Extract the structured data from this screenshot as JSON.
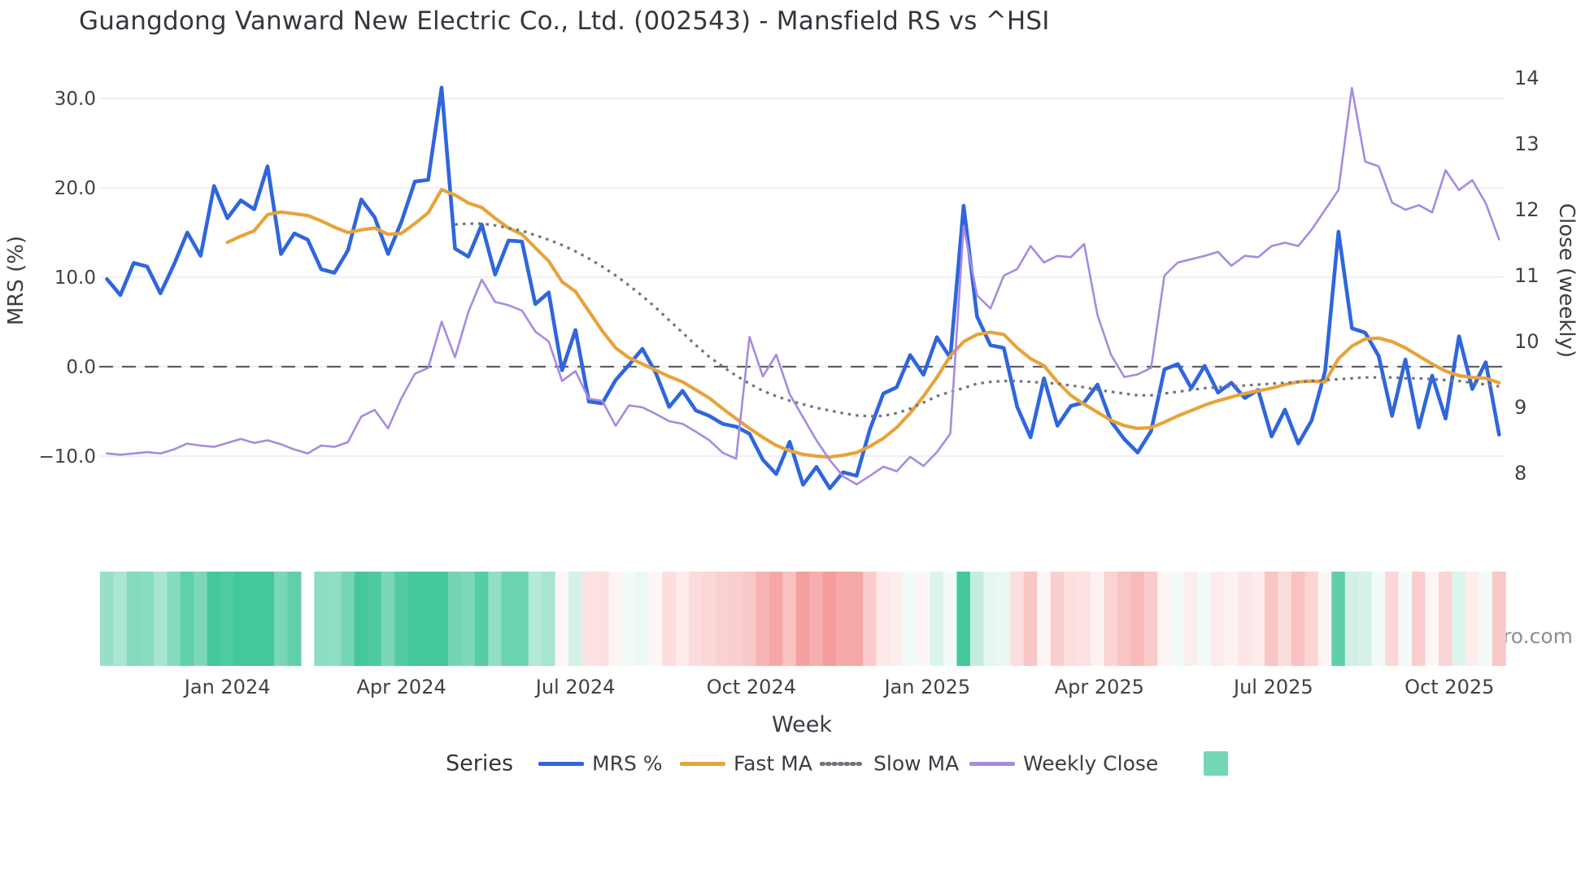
{
  "title": "Guangdong Vanward New Electric Co., Ltd. (002543) - Mansfield RS vs ^HSI",
  "source": "source: sharemaestro.com",
  "axes": {
    "left": {
      "label": "MRS (%)",
      "ticks": [
        {
          "label": "30.0",
          "value": 30
        },
        {
          "label": "20.0",
          "value": 20
        },
        {
          "label": "10.0",
          "value": 10
        },
        {
          "label": "0.0",
          "value": 0
        },
        {
          "label": "−10.0",
          "value": -10
        }
      ]
    },
    "right": {
      "label": "Close (weekly)",
      "ticks": [
        {
          "label": "14",
          "value": 14
        },
        {
          "label": "13",
          "value": 13
        },
        {
          "label": "12",
          "value": 12
        },
        {
          "label": "11",
          "value": 11
        },
        {
          "label": "10",
          "value": 10
        },
        {
          "label": "9",
          "value": 9
        },
        {
          "label": "8",
          "value": 8
        }
      ]
    },
    "x": {
      "label": "Week",
      "ticks": [
        {
          "label": "Jan 2024",
          "index": 9.0
        },
        {
          "label": "Apr 2024",
          "index": 22.0
        },
        {
          "label": "Jul 2024",
          "index": 35.0
        },
        {
          "label": "Oct 2024",
          "index": 48.14
        },
        {
          "label": "Jan 2025",
          "index": 61.29
        },
        {
          "label": "Apr 2025",
          "index": 74.14
        },
        {
          "label": "Jul 2025",
          "index": 87.14
        },
        {
          "label": "Oct 2025",
          "index": 100.29
        }
      ]
    }
  },
  "legend": {
    "title": "Series",
    "items": [
      {
        "label": "MRS %",
        "swatch": "line",
        "color": "#2f66dc"
      },
      {
        "label": "Fast MA",
        "swatch": "line",
        "color": "#e7a33a"
      },
      {
        "label": "Slow MA",
        "swatch": "dotted",
        "color": "#70757d"
      },
      {
        "label": "Weekly Close",
        "swatch": "line",
        "color": "#a78ae1"
      },
      {
        "label": "",
        "swatch": "square",
        "color": "rgba(43,192,141,0.65)"
      }
    ]
  },
  "chart_data": {
    "type": "line",
    "title": "Guangdong Vanward New Electric Co., Ltd. (002543) - Mansfield RS vs ^HSI",
    "xlabel": "Week",
    "ylabel_left": "MRS (%)",
    "ylabel_right": "Close (weekly)",
    "ylim_left": [
      -17.0,
      34.5
    ],
    "ylim_right": [
      7.3,
      14.3
    ],
    "grid": "horizontal-left-ticks",
    "zero_line_left": 0,
    "x": [
      "2023-10-30",
      "2023-11-06",
      "2023-11-13",
      "2023-11-20",
      "2023-11-27",
      "2023-12-04",
      "2023-12-11",
      "2023-12-18",
      "2023-12-25",
      "2024-01-01",
      "2024-01-08",
      "2024-01-15",
      "2024-01-22",
      "2024-01-29",
      "2024-02-05",
      "2024-02-12",
      "2024-02-19",
      "2024-02-26",
      "2024-03-04",
      "2024-03-11",
      "2024-03-18",
      "2024-03-25",
      "2024-04-01",
      "2024-04-08",
      "2024-04-15",
      "2024-04-22",
      "2024-04-29",
      "2024-05-06",
      "2024-05-13",
      "2024-05-20",
      "2024-05-27",
      "2024-06-03",
      "2024-06-10",
      "2024-06-17",
      "2024-06-24",
      "2024-07-01",
      "2024-07-08",
      "2024-07-15",
      "2024-07-22",
      "2024-07-29",
      "2024-08-05",
      "2024-08-12",
      "2024-08-19",
      "2024-08-26",
      "2024-09-02",
      "2024-09-09",
      "2024-09-16",
      "2024-09-23",
      "2024-09-30",
      "2024-10-07",
      "2024-10-14",
      "2024-10-21",
      "2024-10-28",
      "2024-11-04",
      "2024-11-11",
      "2024-11-18",
      "2024-11-25",
      "2024-12-02",
      "2024-12-09",
      "2024-12-16",
      "2024-12-23",
      "2024-12-30",
      "2025-01-06",
      "2025-01-13",
      "2025-01-20",
      "2025-01-27",
      "2025-02-03",
      "2025-02-10",
      "2025-02-17",
      "2025-02-24",
      "2025-03-03",
      "2025-03-10",
      "2025-03-17",
      "2025-03-24",
      "2025-03-31",
      "2025-04-07",
      "2025-04-14",
      "2025-04-21",
      "2025-04-28",
      "2025-05-05",
      "2025-05-12",
      "2025-05-19",
      "2025-05-26",
      "2025-06-02",
      "2025-06-09",
      "2025-06-16",
      "2025-06-23",
      "2025-06-30",
      "2025-07-07",
      "2025-07-14",
      "2025-07-21",
      "2025-07-28",
      "2025-08-04",
      "2025-08-11",
      "2025-08-18",
      "2025-08-25",
      "2025-09-01",
      "2025-09-08",
      "2025-09-15",
      "2025-09-22",
      "2025-09-29",
      "2025-10-06",
      "2025-10-13",
      "2025-10-20",
      "2025-10-27"
    ],
    "series": [
      {
        "name": "MRS %",
        "axis": "left",
        "color": "#2f66dc",
        "width": 4.6,
        "style": "solid",
        "start_index": 0,
        "values": [
          9.8,
          8.0,
          11.6,
          11.2,
          8.2,
          11.4,
          15.0,
          12.4,
          20.2,
          16.6,
          18.6,
          17.6,
          22.4,
          12.6,
          14.9,
          14.2,
          10.9,
          10.5,
          13.0,
          18.7,
          16.7,
          12.6,
          16.2,
          20.7,
          20.9,
          31.2,
          13.2,
          12.3,
          15.9,
          10.3,
          14.1,
          14.0,
          7.0,
          8.3,
          -0.4,
          4.1,
          -3.9,
          -4.1,
          -1.5,
          0.2,
          2.0,
          -0.7,
          -4.5,
          -2.7,
          -4.9,
          -5.5,
          -6.4,
          -6.7,
          -7.5,
          -10.4,
          -12.0,
          -8.4,
          -13.2,
          -11.2,
          -13.6,
          -11.8,
          -12.2,
          -7.0,
          -3.0,
          -2.3,
          1.3,
          -0.9,
          3.3,
          1.0,
          18.0,
          5.6,
          2.4,
          2.1,
          -4.5,
          -7.9,
          -1.3,
          -6.6,
          -4.4,
          -4.0,
          -2.0,
          -6.1,
          -8.1,
          -9.6,
          -7.2,
          -0.3,
          0.3,
          -2.4,
          0.1,
          -2.9,
          -1.8,
          -3.5,
          -2.6,
          -7.8,
          -4.8,
          -8.6,
          -6.0,
          -0.5,
          15.1,
          4.3,
          3.8,
          1.2,
          -5.5,
          0.8,
          -6.8,
          -1.0,
          -5.8,
          3.4,
          -2.5,
          0.5,
          -7.6
        ]
      },
      {
        "name": "Fast MA",
        "axis": "left",
        "color": "#e7a33a",
        "width": 4.2,
        "style": "solid",
        "start_index": 9,
        "values": [
          13.9,
          14.6,
          15.2,
          17.0,
          17.3,
          17.1,
          16.9,
          16.3,
          15.6,
          15.0,
          15.3,
          15.5,
          14.8,
          14.9,
          16.0,
          17.2,
          19.8,
          19.2,
          18.3,
          17.8,
          16.6,
          15.5,
          14.8,
          13.3,
          11.8,
          9.5,
          8.4,
          6.2,
          4.0,
          2.1,
          1.0,
          0.3,
          -0.4,
          -1.1,
          -1.7,
          -2.6,
          -3.5,
          -4.7,
          -5.8,
          -6.9,
          -7.9,
          -8.8,
          -9.4,
          -9.8,
          -10.0,
          -10.1,
          -9.9,
          -9.6,
          -8.9,
          -8.0,
          -6.8,
          -5.2,
          -3.3,
          -1.2,
          1.2,
          2.8,
          3.6,
          3.85,
          3.6,
          2.1,
          0.9,
          0.1,
          -1.7,
          -3.2,
          -4.2,
          -5.1,
          -6.0,
          -6.6,
          -6.9,
          -6.8,
          -6.2,
          -5.5,
          -4.9,
          -4.3,
          -3.8,
          -3.4,
          -3.0,
          -2.7,
          -2.4,
          -2.0,
          -1.7,
          -1.6,
          -1.7,
          0.9,
          2.3,
          3.1,
          3.2,
          2.8,
          2.1,
          1.2,
          0.3,
          -0.5,
          -1.0,
          -1.2,
          -1.3,
          -1.8
        ]
      },
      {
        "name": "Slow MA",
        "axis": "left",
        "color": "#70757d",
        "width": 3.2,
        "style": "dotted",
        "start_index": 26,
        "values": [
          15.9,
          16.0,
          16.0,
          15.8,
          15.5,
          15.2,
          14.7,
          14.2,
          13.6,
          12.9,
          12.1,
          11.2,
          10.2,
          9.1,
          7.9,
          6.6,
          5.2,
          3.8,
          2.4,
          1.1,
          0.0,
          -1.0,
          -1.9,
          -2.7,
          -3.3,
          -3.8,
          -4.2,
          -4.6,
          -4.9,
          -5.2,
          -5.45,
          -5.55,
          -5.5,
          -5.2,
          -4.7,
          -4.0,
          -3.3,
          -2.8,
          -2.4,
          -1.9,
          -1.7,
          -1.6,
          -1.6,
          -1.7,
          -1.8,
          -1.9,
          -2.1,
          -2.3,
          -2.6,
          -2.8,
          -3.0,
          -3.2,
          -3.2,
          -3.0,
          -2.8,
          -2.6,
          -2.4,
          -2.3,
          -2.2,
          -2.1,
          -2.0,
          -1.9,
          -1.8,
          -1.7,
          -1.6,
          -1.5,
          -1.4,
          -1.3,
          -1.2,
          -1.2,
          -1.2,
          -1.3,
          -1.3,
          -1.4,
          -1.5,
          -1.6,
          -1.8,
          -2.0,
          -2.2
        ]
      },
      {
        "name": "Weekly Close",
        "axis": "right",
        "color": "#a78ae1",
        "width": 2.6,
        "style": "solid",
        "start_index": 0,
        "values": [
          8.3,
          8.28,
          8.3,
          8.32,
          8.3,
          8.36,
          8.45,
          8.42,
          8.4,
          8.46,
          8.52,
          8.46,
          8.5,
          8.44,
          8.36,
          8.3,
          8.42,
          8.4,
          8.47,
          8.86,
          8.96,
          8.68,
          9.14,
          9.51,
          9.6,
          10.3,
          9.76,
          10.45,
          10.94,
          10.6,
          10.55,
          10.47,
          10.15,
          10.0,
          9.4,
          9.55,
          9.13,
          9.1,
          8.72,
          9.03,
          9.0,
          8.9,
          8.79,
          8.75,
          8.63,
          8.5,
          8.31,
          8.22,
          10.07,
          9.47,
          9.8,
          9.2,
          8.85,
          8.5,
          8.2,
          7.95,
          7.83,
          7.96,
          8.1,
          8.03,
          8.25,
          8.11,
          8.32,
          8.6,
          11.75,
          10.7,
          10.5,
          11.0,
          11.1,
          11.45,
          11.2,
          11.3,
          11.28,
          11.48,
          10.4,
          9.8,
          9.46,
          9.5,
          9.6,
          11.0,
          11.2,
          11.25,
          11.3,
          11.36,
          11.15,
          11.3,
          11.28,
          11.45,
          11.5,
          11.45,
          11.7,
          12.0,
          12.3,
          13.85,
          12.73,
          12.66,
          12.11,
          12.0,
          12.07,
          11.96,
          12.6,
          12.3,
          12.45,
          12.1,
          11.55
        ]
      }
    ],
    "heatmap": {
      "derived_from": "MRS %",
      "rule": "green when MRS>=0, red when MRS<0, opacity = clamp(|MRS|/20, 0.06, 0.88)",
      "positive_color": "#2bc08d",
      "negative_color": "#f06e6e",
      "missing_week_indices": [
        15
      ]
    }
  }
}
